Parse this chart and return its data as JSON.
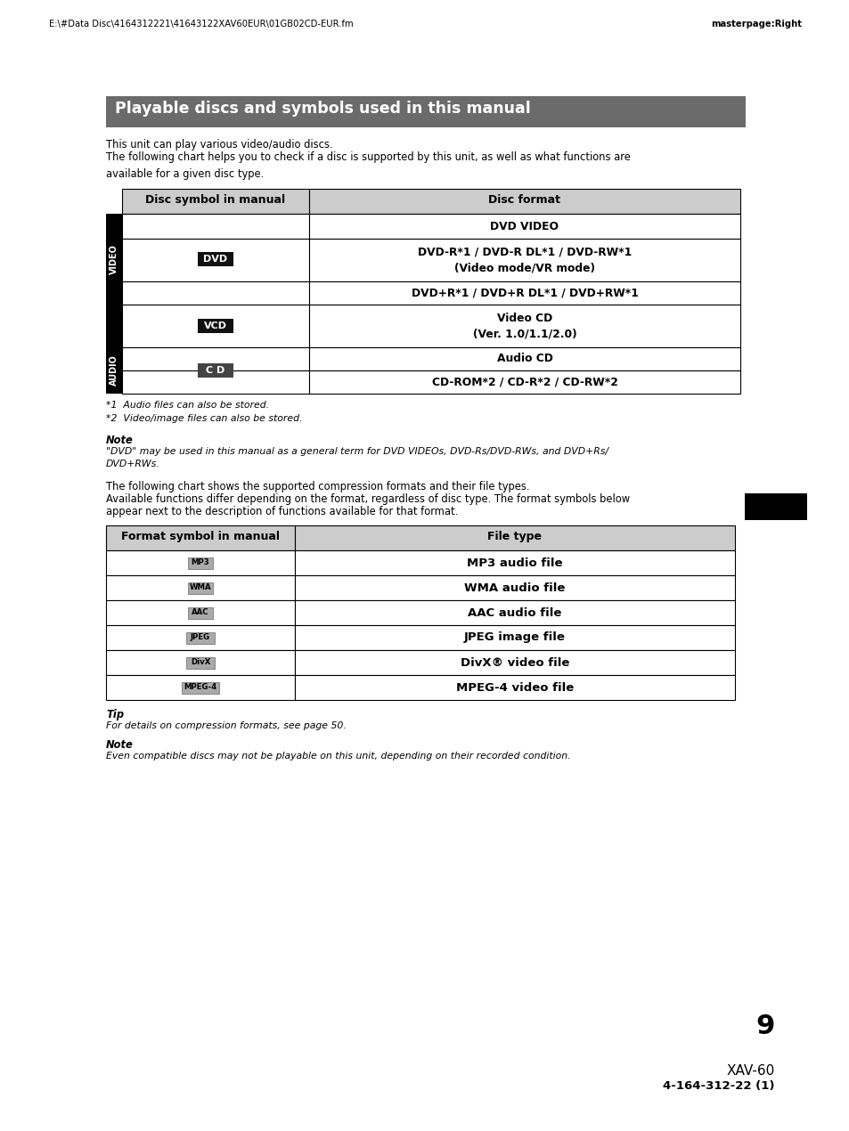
{
  "page_header_left": "E:\\#Data Disc\\4164312221\\41643122XAV60EUR\\01GB02CD-EUR.fm",
  "page_header_right": "masterpage:Right",
  "title": "Playable discs and symbols used in this manual",
  "title_bg": "#6b6b6b",
  "title_fg": "#ffffff",
  "intro_text1": "This unit can play various video/audio discs.",
  "intro_text2": "The following chart helps you to check if a disc is supported by this unit, as well as what functions are\navailable for a given disc type.",
  "table1_header": [
    "Disc symbol in manual",
    "Disc format"
  ],
  "footnote1": "*1  Audio files can also be stored.",
  "footnote2": "*2  Video/image files can also be stored.",
  "note_label": "Note",
  "note_text": "\"DVD\" may be used in this manual as a general term for DVD VIDEOs, DVD-Rs/DVD-RWs, and DVD+Rs/\nDVD+RWs.",
  "text2_line1": "The following chart shows the supported compression formats and their file types.",
  "text2_line2": "Available functions differ depending on the format, regardless of disc type. The format symbols below",
  "text2_line3": "appear next to the description of functions available for that format.",
  "table2_header": [
    "Format symbol in manual",
    "File type"
  ],
  "table2_rows": [
    {
      "symbol": "MP3",
      "file_type": "MP3 audio file"
    },
    {
      "symbol": "WMA",
      "file_type": "WMA audio file"
    },
    {
      "symbol": "AAC",
      "file_type": "AAC audio file"
    },
    {
      "symbol": "JPEG",
      "file_type": "JPEG image file"
    },
    {
      "symbol": "DivX",
      "file_type": "DivX® video file"
    },
    {
      "symbol": "MPEG-4",
      "file_type": "MPEG-4 video file"
    }
  ],
  "tip_label": "Tip",
  "tip_text": "For details on compression formats, see page 50.",
  "note2_label": "Note",
  "note2_text": "Even compatible discs may not be playable on this unit, depending on their recorded condition.",
  "page_number": "9",
  "footer_model": "XAV-60",
  "footer_part": "4-164-312-",
  "footer_part_bold": "22",
  "footer_part_end": " (1)",
  "table_border_color": "#000000",
  "header_bg": "#cccccc",
  "body_bg": "#ffffff",
  "side_label_bg": "#000000",
  "side_label_fg": "#ffffff"
}
